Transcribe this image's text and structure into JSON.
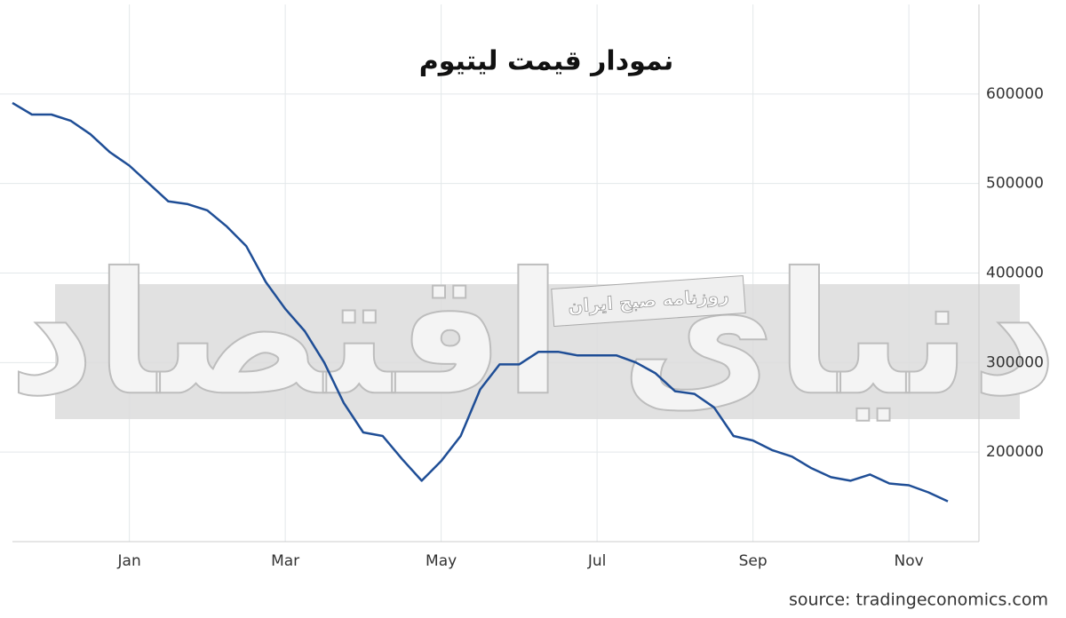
{
  "chart_data": {
    "type": "line",
    "title": "نمودار قیمت لیتیوم",
    "source": "source: tradingeconomics.com",
    "watermark": "دنیای اقتصاد",
    "watermark_subtitle": "روزنامه صبح ایران",
    "categories": [
      null,
      null,
      null,
      null,
      null,
      null,
      "Jan",
      null,
      null,
      null,
      null,
      null,
      null,
      null,
      "Mar",
      null,
      null,
      null,
      null,
      null,
      null,
      null,
      "May",
      null,
      null,
      null,
      null,
      null,
      null,
      null,
      "Jul",
      null,
      null,
      null,
      null,
      null,
      null,
      null,
      "Sep",
      null,
      null,
      null,
      null,
      null,
      null,
      null,
      "Nov",
      null,
      null
    ],
    "series": [
      {
        "color": "#1f4e96",
        "values": [
          590000,
          577000,
          577000,
          570000,
          555000,
          535000,
          520000,
          500000,
          480000,
          477000,
          470000,
          452000,
          430000,
          390000,
          360000,
          335000,
          300000,
          255000,
          222000,
          218000,
          192000,
          168000,
          190000,
          218000,
          270000,
          298000,
          298000,
          312000,
          312000,
          308000,
          308000,
          308000,
          300000,
          288000,
          268000,
          265000,
          250000,
          218000,
          213000,
          202000,
          195000,
          182000,
          172000,
          168000,
          175000,
          165000,
          163000,
          155000,
          145000
        ]
      }
    ],
    "ylim": [
      100000,
      700000
    ],
    "yticks": [
      200000,
      300000,
      400000,
      500000,
      600000
    ],
    "y_axis_side": "right",
    "grid": true
  }
}
